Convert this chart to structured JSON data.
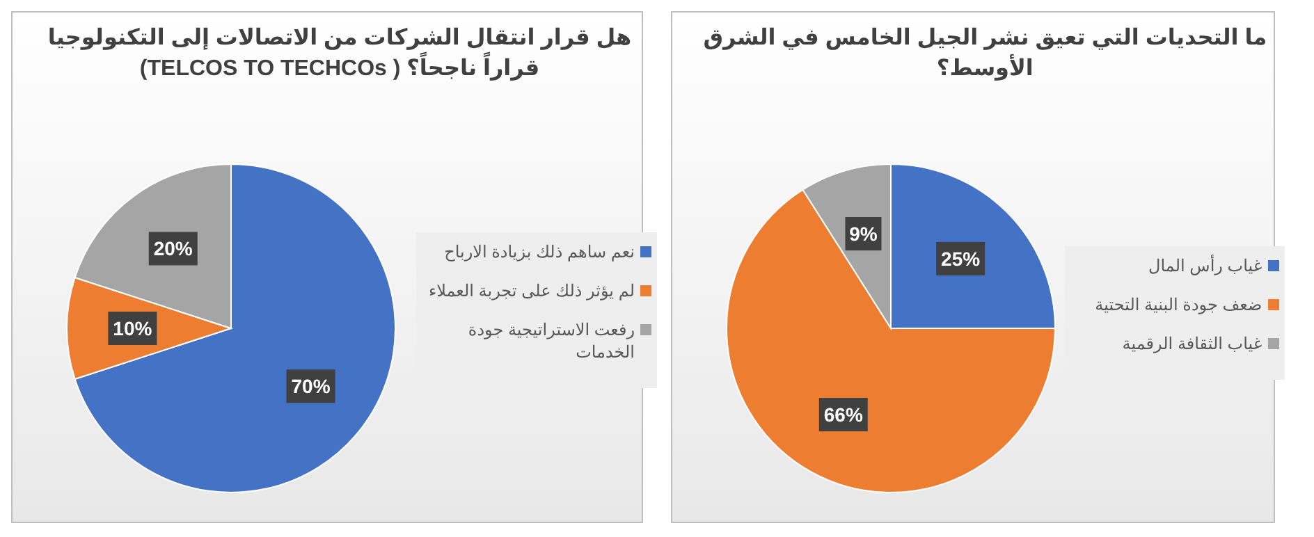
{
  "chart_data": [
    {
      "type": "pie",
      "title": "هل قرار انتقال الشركات من الاتصالات إلى التكنولوجيا قراراً ناجحاً؟ ( TELCOS TO TECHCOs)",
      "categories": [
        "نعم ساهم ذلك بزيادة الارباح",
        "لم يؤثر ذلك على تجربة العملاء",
        "رفعت الاستراتيجية جودة الخدمات"
      ],
      "values": [
        70,
        10,
        20
      ],
      "value_labels": [
        "70%",
        "10%",
        "20%"
      ],
      "colors": [
        "#4472c4",
        "#ed7d31",
        "#a5a5a5"
      ],
      "legend": "right"
    },
    {
      "type": "pie",
      "title": "ما التحديات التي تعيق نشر الجيل الخامس في الشرق الأوسط؟",
      "categories": [
        "غياب رأس المال",
        "ضعف جودة البنية التحتية",
        "غياب الثقافة الرقمية"
      ],
      "values": [
        25,
        66,
        9
      ],
      "value_labels": [
        "25%",
        "66%",
        "9%"
      ],
      "colors": [
        "#4472c4",
        "#ed7d31",
        "#a5a5a5"
      ],
      "legend": "right"
    }
  ]
}
